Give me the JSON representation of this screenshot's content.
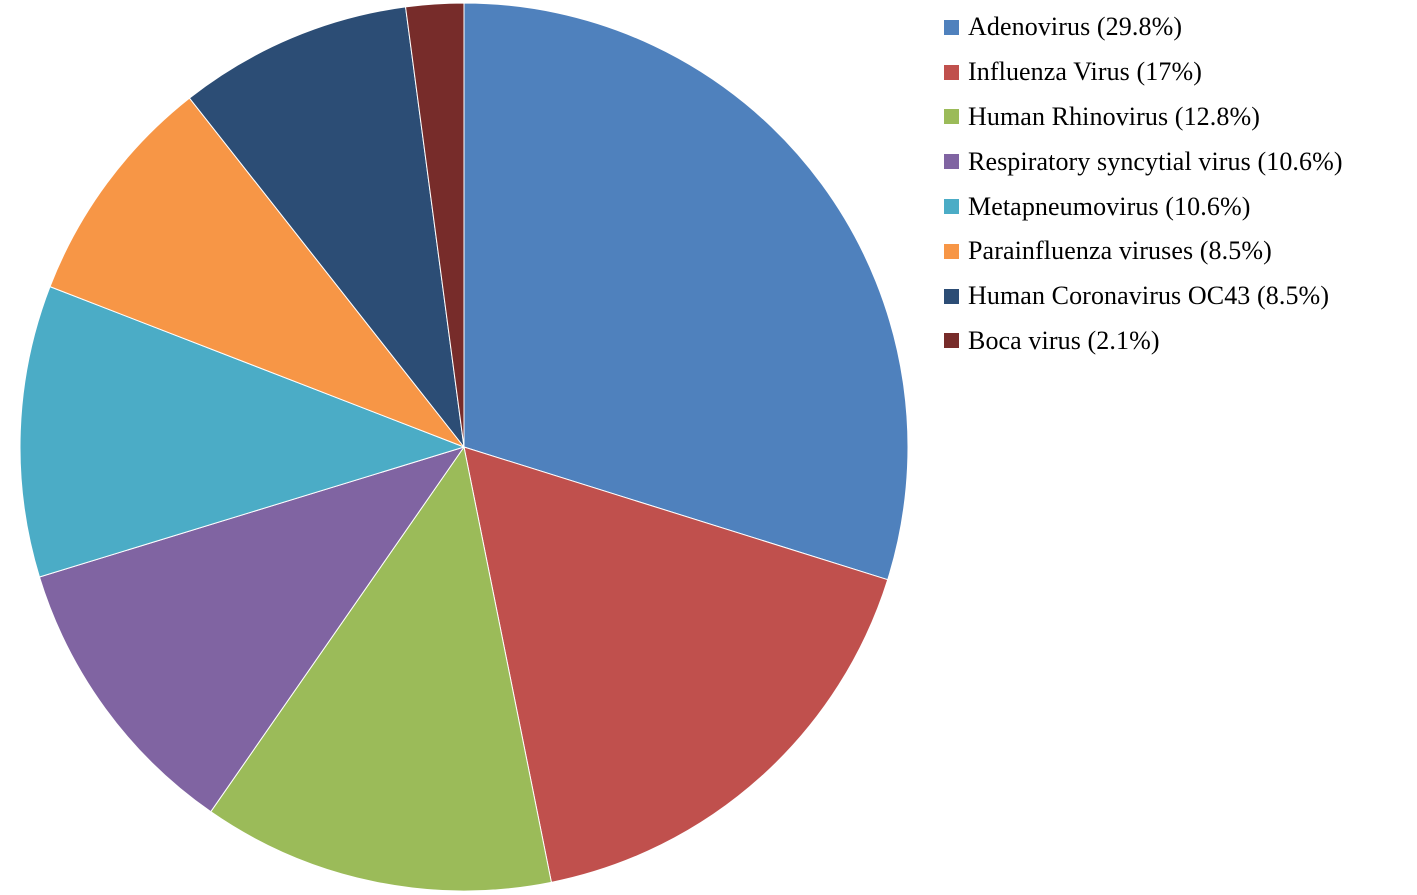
{
  "chart_data": {
    "type": "pie",
    "title": "",
    "legend_position": "right",
    "start_angle_deg": 0,
    "direction": "clockwise",
    "slices": [
      {
        "label": "Adenovirus (29.8%)",
        "value": 29.8,
        "color": "#4f81bd"
      },
      {
        "label": "Influenza Virus (17%)",
        "value": 17,
        "color": "#c0504d"
      },
      {
        "label": "Human Rhinovirus (12.8%)",
        "value": 12.8,
        "color": "#9bbb59"
      },
      {
        "label": "Respiratory syncytial virus (10.6%)",
        "value": 10.6,
        "color": "#8064a2"
      },
      {
        "label": "Metapneumovirus (10.6%)",
        "value": 10.6,
        "color": "#4bacc6"
      },
      {
        "label": "Parainfluenza viruses (8.5%)",
        "value": 8.5,
        "color": "#f79646"
      },
      {
        "label": "Human Coronavirus OC43 (8.5%)",
        "value": 8.5,
        "color": "#2c4d75"
      },
      {
        "label": "Boca virus (2.1%)",
        "value": 2.1,
        "color": "#772c2a"
      }
    ]
  }
}
